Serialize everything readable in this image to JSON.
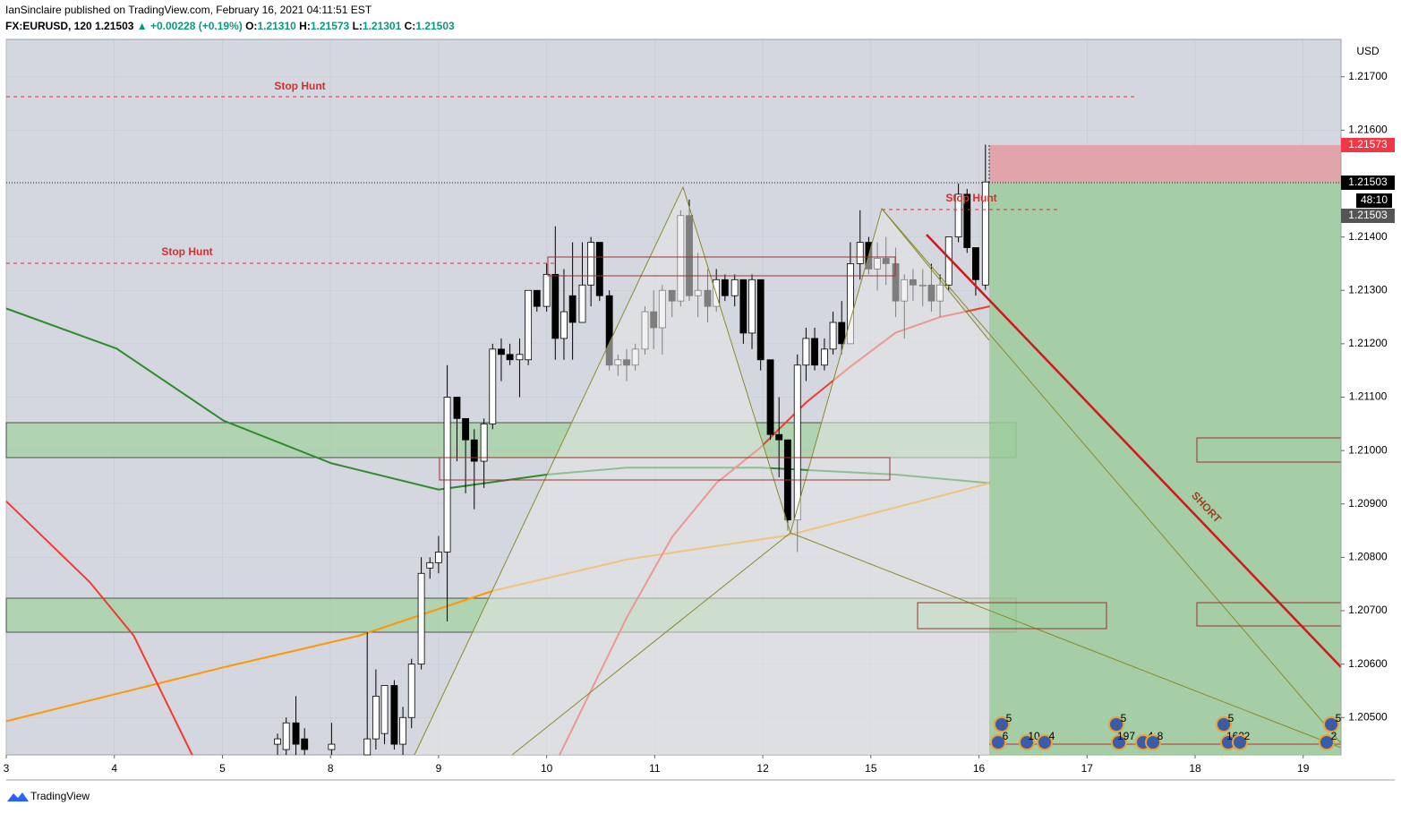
{
  "header": {
    "published": "IanSinclaire published on TradingView.com, February 16, 2021 04:11:51 EST",
    "symbol": "FX:EURUSD, 120",
    "last": "1.21503",
    "change": "▲ +0.00228 (+0.19%)",
    "o_label": "O:",
    "o": "1.21310",
    "h_label": "H:",
    "h": "1.21573",
    "l_label": "L:",
    "l": "1.21301",
    "c_label": "C:",
    "c": "1.21503"
  },
  "axis_unit": "USD",
  "price_tags": [
    "1.21573",
    "1.21503",
    "48:10",
    "1.21503"
  ],
  "annotations": [
    "Stop Hunt",
    "Stop Hunt",
    "Stop Hunt",
    "SHORT"
  ],
  "events": [
    "5",
    "6",
    "10",
    "4",
    "5",
    "197",
    "4",
    "8",
    "5",
    "162",
    "2",
    "5",
    "2"
  ],
  "footer": "TradingView",
  "chart_data": {
    "type": "candlestick",
    "x": [
      2.51,
      2.59,
      2.68,
      2.76,
      3.01,
      3.34,
      3.42,
      3.5,
      3.59,
      3.67,
      3.75,
      3.84,
      3.92,
      4.0,
      4.08,
      4.17,
      4.25,
      4.33,
      4.42,
      4.5,
      4.58,
      4.66,
      4.75,
      4.83,
      4.91,
      5.0,
      5.08,
      5.16,
      5.24,
      5.33,
      5.41,
      5.49,
      5.58,
      5.66,
      5.74,
      5.82,
      5.91,
      5.99,
      6.07,
      6.16,
      6.24,
      6.32,
      6.4,
      6.49,
      6.57,
      6.65,
      6.74,
      6.82,
      6.9,
      6.98,
      7.07,
      7.15,
      7.23,
      7.32,
      7.4,
      7.48,
      7.57,
      7.65,
      7.73,
      7.81,
      7.9,
      7.98,
      8.06,
      8.14,
      8.23,
      8.31,
      8.39,
      8.48,
      8.56,
      8.64,
      8.72,
      8.81,
      8.89,
      8.97,
      9.06
    ],
    "open": [
      1.2045,
      1.2044,
      1.2049,
      1.2046,
      1.2044,
      1.2043,
      1.2046,
      1.2047,
      1.2056,
      1.2045,
      1.205,
      1.206,
      1.2078,
      1.2079,
      1.2081,
      1.211,
      1.2106,
      1.2102,
      1.2098,
      1.2105,
      1.2119,
      1.2118,
      1.2117,
      1.2117,
      1.213,
      1.2127,
      1.2133,
      1.2121,
      1.2129,
      1.2124,
      1.2131,
      1.2139,
      1.2129,
      1.2116,
      1.2117,
      1.2116,
      1.2119,
      1.2126,
      1.2123,
      1.213,
      1.2128,
      1.2144,
      1.2129,
      1.213,
      1.2127,
      1.2132,
      1.2129,
      1.2132,
      1.2122,
      1.2132,
      1.2117,
      1.2103,
      1.2102,
      1.2087,
      1.2116,
      1.2121,
      1.2116,
      1.2119,
      1.2124,
      1.212,
      1.2135,
      1.2139,
      1.2134,
      1.2136,
      1.2135,
      1.2128,
      1.2132,
      1.2131,
      1.2131,
      1.2128,
      1.2131,
      1.214,
      1.2148,
      1.2138,
      1.2131
    ],
    "high": [
      1.2047,
      1.205,
      1.2054,
      1.2048,
      1.2049,
      1.2066,
      1.2059,
      1.2056,
      1.2057,
      1.2052,
      1.2061,
      1.208,
      1.208,
      1.2084,
      1.2116,
      1.211,
      1.2106,
      1.2104,
      1.2106,
      1.212,
      1.2121,
      1.212,
      1.2121,
      1.213,
      1.213,
      1.2135,
      1.2142,
      1.2134,
      1.2139,
      1.2139,
      1.214,
      1.2139,
      1.213,
      1.2118,
      1.2119,
      1.212,
      1.2127,
      1.213,
      1.2131,
      1.213,
      1.2145,
      1.2147,
      1.2137,
      1.2134,
      1.2134,
      1.2133,
      1.2133,
      1.2132,
      1.2133,
      1.2132,
      1.2117,
      1.211,
      1.2102,
      1.2118,
      1.2123,
      1.2123,
      1.2121,
      1.2126,
      1.2128,
      1.2139,
      1.2145,
      1.214,
      1.2139,
      1.214,
      1.2138,
      1.2133,
      1.2134,
      1.2134,
      1.2135,
      1.2133,
      1.214,
      1.215,
      1.2149,
      1.2138,
      1.21573
    ],
    "low": [
      1.2043,
      1.2043,
      1.2043,
      1.2043,
      1.2043,
      1.2043,
      1.2044,
      1.2045,
      1.2044,
      1.2043,
      1.2048,
      1.2059,
      1.2076,
      1.2077,
      1.2068,
      1.2098,
      1.2092,
      1.2089,
      1.2093,
      1.2104,
      1.2113,
      1.2116,
      1.211,
      1.2116,
      1.2126,
      1.2126,
      1.2117,
      1.2117,
      1.2117,
      1.2124,
      1.2127,
      1.2128,
      1.2115,
      1.2114,
      1.2113,
      1.2115,
      1.2118,
      1.2119,
      1.2118,
      1.2125,
      1.2127,
      1.2128,
      1.2125,
      1.2124,
      1.2126,
      1.2128,
      1.2127,
      1.212,
      1.2119,
      1.2115,
      1.2102,
      1.2095,
      1.2085,
      1.2081,
      1.2113,
      1.2115,
      1.2115,
      1.2118,
      1.2118,
      1.212,
      1.2132,
      1.2133,
      1.213,
      1.2131,
      1.2125,
      1.2121,
      1.2128,
      1.2127,
      1.2126,
      1.2125,
      1.213,
      1.2139,
      1.2137,
      1.2129,
      1.21301
    ],
    "close": [
      1.2046,
      1.2049,
      1.2045,
      1.2044,
      1.2045,
      1.2046,
      1.2054,
      1.2056,
      1.2045,
      1.205,
      1.206,
      1.2077,
      1.2079,
      1.2081,
      1.211,
      1.2106,
      1.2102,
      1.2098,
      1.2105,
      1.2119,
      1.2118,
      1.2117,
      1.2118,
      1.213,
      1.2127,
      1.2133,
      1.2121,
      1.2126,
      1.2124,
      1.2131,
      1.2139,
      1.2129,
      1.2116,
      1.2117,
      1.2116,
      1.2119,
      1.2126,
      1.2123,
      1.213,
      1.2128,
      1.2144,
      1.2129,
      1.213,
      1.2127,
      1.2132,
      1.2129,
      1.2132,
      1.2122,
      1.2132,
      1.2117,
      1.2103,
      1.2102,
      1.2087,
      1.2116,
      1.2121,
      1.2116,
      1.2119,
      1.2124,
      1.212,
      1.2135,
      1.2139,
      1.2134,
      1.2136,
      1.2135,
      1.2128,
      1.2132,
      1.2131,
      1.2131,
      1.2128,
      1.2131,
      1.214,
      1.2148,
      1.2138,
      1.2132,
      1.21503
    ],
    "up_color": "#ffffff",
    "down_color": "#000000",
    "lines": [
      {
        "color": "#2e8b2e",
        "x": [
          0,
          1.02,
          2.01,
          3.01,
          4.0,
          5.0,
          5.74,
          6.98,
          8.23,
          9.1
        ],
        "values": [
          1.21266,
          1.21191,
          1.21056,
          1.20976,
          1.20927,
          1.20955,
          1.20968,
          1.20968,
          1.20955,
          1.20939
        ]
      },
      {
        "color": "#ff9800",
        "x": [
          0,
          2.01,
          3.26,
          4.5,
          5.74,
          7.23,
          9.1
        ],
        "values": [
          1.20493,
          1.20594,
          1.20653,
          1.20737,
          1.20796,
          1.20841,
          1.20939
        ]
      },
      {
        "color": "#f23b2e",
        "x": [
          0,
          0.77,
          1.18,
          1.72,
          3.26,
          5.12,
          5.74,
          6.16,
          6.57,
          6.98,
          7.4,
          7.81,
          8.23,
          8.64,
          9.1
        ],
        "values": [
          1.20905,
          1.20754,
          1.20653,
          1.2043,
          null,
          1.2043,
          1.20687,
          1.20838,
          1.20939,
          1.21006,
          1.2109,
          1.21157,
          1.21221,
          1.2125,
          1.2127
        ]
      }
    ],
    "xlim": [
      0,
      12.35
    ],
    "ylim": [
      1.2043,
      1.2177
    ],
    "xticks": [
      {
        "value": 0,
        "label": "3"
      },
      {
        "value": 1,
        "label": "4"
      },
      {
        "value": 2,
        "label": "5"
      },
      {
        "value": 3,
        "label": "8"
      },
      {
        "value": 4,
        "label": "9"
      },
      {
        "value": 5,
        "label": "10"
      },
      {
        "value": 6,
        "label": "11"
      },
      {
        "value": 7,
        "label": "12"
      },
      {
        "value": 8,
        "label": "15"
      },
      {
        "value": 9,
        "label": "16"
      },
      {
        "value": 10,
        "label": "17"
      },
      {
        "value": 11,
        "label": "18"
      },
      {
        "value": 12,
        "label": "19"
      }
    ],
    "yticks": [
      {
        "value": 1.205,
        "label": "1.20500"
      },
      {
        "value": 1.206,
        "label": "1.20600"
      },
      {
        "value": 1.207,
        "label": "1.20700"
      },
      {
        "value": 1.208,
        "label": "1.20800"
      },
      {
        "value": 1.209,
        "label": "1.20900"
      },
      {
        "value": 1.21,
        "label": "1.21000"
      },
      {
        "value": 1.211,
        "label": "1.21100"
      },
      {
        "value": 1.212,
        "label": "1.21200"
      },
      {
        "value": 1.213,
        "label": "1.21300"
      },
      {
        "value": 1.214,
        "label": "1.21400"
      },
      {
        "value": 1.215,
        "label": "1.21500"
      },
      {
        "value": 1.216,
        "label": "1.21600"
      },
      {
        "value": 1.217,
        "label": "1.21700"
      }
    ]
  }
}
